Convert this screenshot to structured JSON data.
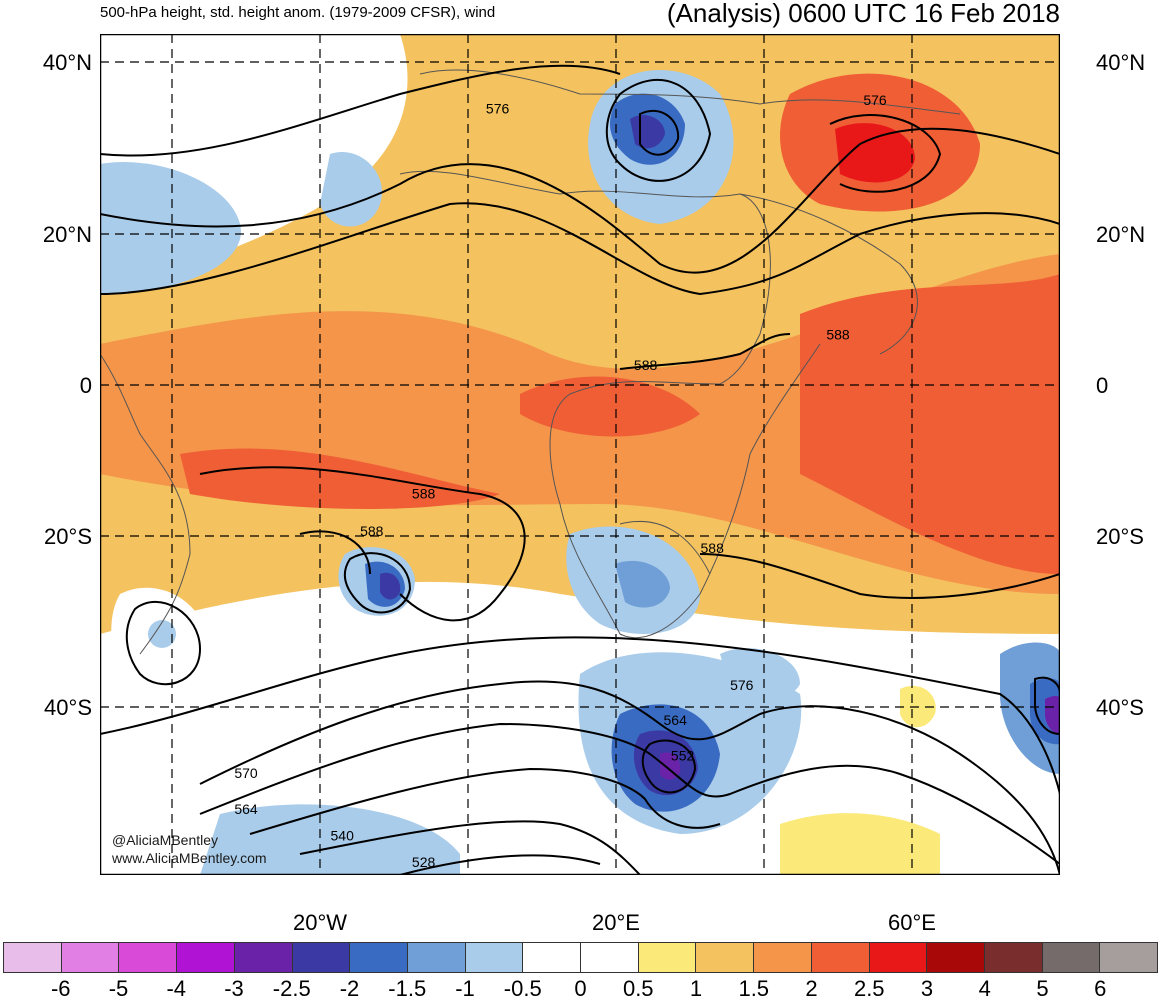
{
  "header": {
    "left": "500-hPa height, std. height anom. (1979-2009 CFSR), wind",
    "right": "(Analysis) 0600 UTC 16 Feb 2018"
  },
  "lat_labels": [
    "40°N",
    "20°N",
    "0",
    "20°S",
    "40°S"
  ],
  "lat_values": [
    40,
    20,
    0,
    -20,
    -40
  ],
  "lon_labels": [
    "20°W",
    "20°E",
    "60°E"
  ],
  "lon_values": [
    -20,
    20,
    60
  ],
  "contour_labels": [
    {
      "text": "576",
      "lon": 4,
      "lat": 34
    },
    {
      "text": "576",
      "lon": 55,
      "lat": 35
    },
    {
      "text": "588",
      "lon": 50,
      "lat": 6
    },
    {
      "text": "588",
      "lon": 24,
      "lat": 2
    },
    {
      "text": "588",
      "lon": -6,
      "lat": -15
    },
    {
      "text": "588",
      "lon": -13,
      "lat": -20
    },
    {
      "text": "588",
      "lon": 33,
      "lat": -22
    },
    {
      "text": "576",
      "lon": 37,
      "lat": -38
    },
    {
      "text": "564",
      "lon": 28,
      "lat": -42
    },
    {
      "text": "552",
      "lon": 29,
      "lat": -46
    },
    {
      "text": "570",
      "lon": -30,
      "lat": -48
    },
    {
      "text": "564",
      "lon": -30,
      "lat": -52
    },
    {
      "text": "540",
      "lon": -17,
      "lat": -55
    },
    {
      "text": "528",
      "lon": -6,
      "lat": -58
    }
  ],
  "credits": [
    "@AliciaMBentley",
    "www.AliciaMBentley.com"
  ],
  "colorbar": {
    "colors": [
      "#e9bde9",
      "#e27fe4",
      "#d94ad8",
      "#b013d4",
      "#6a23a8",
      "#3b3aa4",
      "#3a6bc2",
      "#6f9fd6",
      "#a9cceb",
      "#ffffff",
      "#ffffff",
      "#fbe97a",
      "#f4c25e",
      "#f4954a",
      "#f05e36",
      "#e81818",
      "#a80808",
      "#7a2d2d",
      "#766b6b",
      "#a69d9d"
    ],
    "labels": [
      "-6",
      "-5",
      "-4",
      "-3",
      "-2.5",
      "-2",
      "-1.5",
      "-1",
      "-0.5",
      "0",
      "0.5",
      "1",
      "1.5",
      "2",
      "2.5",
      "3",
      "4",
      "5",
      "6"
    ]
  }
}
